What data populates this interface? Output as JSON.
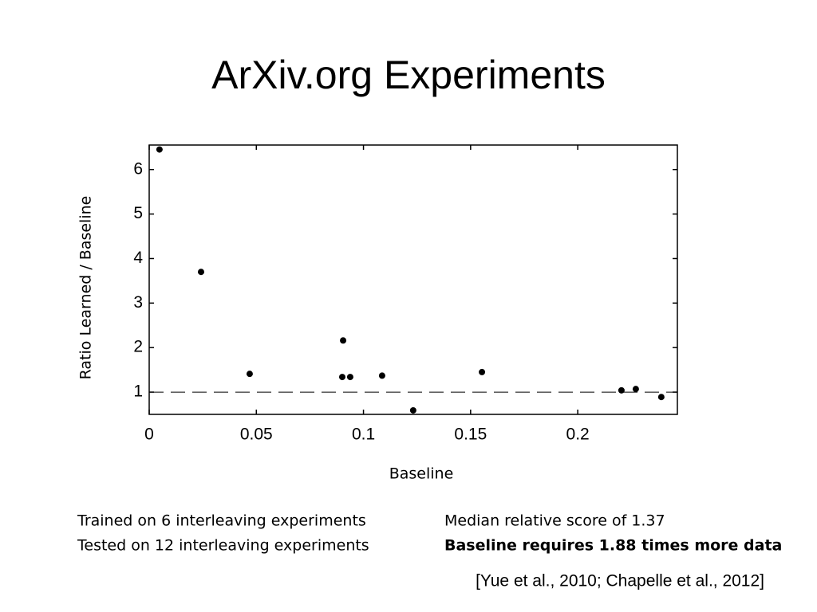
{
  "chart_data": {
    "type": "scatter",
    "title": "ArXiv.org Experiments",
    "x_label": "Baseline",
    "y_label": "Ratio Learned / Baseline",
    "x": [
      0.0048,
      0.0242,
      0.0469,
      0.0901,
      0.0905,
      0.0938,
      0.1087,
      0.1232,
      0.1553,
      0.2204,
      0.2271,
      0.239
    ],
    "values": [
      6.45,
      3.7,
      1.41,
      1.34,
      2.16,
      1.34,
      1.37,
      0.59,
      1.45,
      1.04,
      1.07,
      0.89
    ],
    "color": "#000000",
    "reference_line": 1,
    "xlim": [
      0,
      0.2465
    ],
    "ylim": [
      0.5,
      6.55
    ],
    "xticks": [
      0,
      0.05,
      0.1,
      0.15,
      0.2
    ],
    "yticks": [
      1,
      2,
      3,
      4,
      5,
      6
    ]
  },
  "notes": {
    "left": [
      "Trained on 6 interleaving experiments",
      "Tested on 12 interleaving experiments"
    ],
    "right": [
      "Median relative score of 1.37",
      "Baseline requires 1.88 times more data"
    ],
    "citation": "[Yue et al., 2010; Chapelle et al., 2012]"
  }
}
